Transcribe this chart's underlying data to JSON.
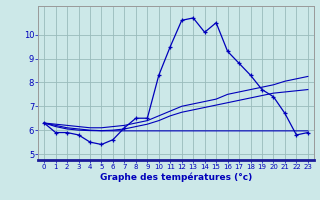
{
  "xlabel": "Graphe des températures (°c)",
  "bg_color": "#cce8e8",
  "line_color": "#0000bb",
  "grid_color": "#99bbbb",
  "hours": [
    0,
    1,
    2,
    3,
    4,
    5,
    6,
    7,
    8,
    9,
    10,
    11,
    12,
    13,
    14,
    15,
    16,
    17,
    18,
    19,
    20,
    21,
    22,
    23
  ],
  "temp_main": [
    6.3,
    5.9,
    5.9,
    5.8,
    5.5,
    5.4,
    5.6,
    6.1,
    6.5,
    6.5,
    8.3,
    9.5,
    10.6,
    10.7,
    10.1,
    10.5,
    9.3,
    8.8,
    8.3,
    7.7,
    7.4,
    6.7,
    5.8,
    5.9
  ],
  "temp_line_top": [
    6.3,
    6.25,
    6.2,
    6.15,
    6.1,
    6.1,
    6.15,
    6.2,
    6.3,
    6.4,
    6.6,
    6.8,
    7.0,
    7.1,
    7.2,
    7.3,
    7.5,
    7.6,
    7.7,
    7.8,
    7.9,
    8.05,
    8.15,
    8.25
  ],
  "temp_line_mid": [
    6.3,
    6.2,
    6.1,
    6.05,
    6.0,
    5.98,
    6.0,
    6.05,
    6.15,
    6.25,
    6.4,
    6.6,
    6.75,
    6.85,
    6.95,
    7.05,
    7.15,
    7.25,
    7.35,
    7.45,
    7.55,
    7.6,
    7.65,
    7.7
  ],
  "temp_flat": [
    6.3,
    6.15,
    6.05,
    6.0,
    5.98,
    5.97,
    5.97,
    5.97,
    5.97,
    5.97,
    5.97,
    5.97,
    5.97,
    5.97,
    5.97,
    5.97,
    5.97,
    5.97,
    5.97,
    5.97,
    5.97,
    5.97,
    5.97,
    5.97
  ],
  "ylim": [
    4.75,
    11.2
  ],
  "yticks": [
    5,
    6,
    7,
    8,
    9,
    10
  ],
  "xlim": [
    -0.5,
    23.5
  ],
  "xticks": [
    0,
    1,
    2,
    3,
    4,
    5,
    6,
    7,
    8,
    9,
    10,
    11,
    12,
    13,
    14,
    15,
    16,
    17,
    18,
    19,
    20,
    21,
    22,
    23
  ]
}
